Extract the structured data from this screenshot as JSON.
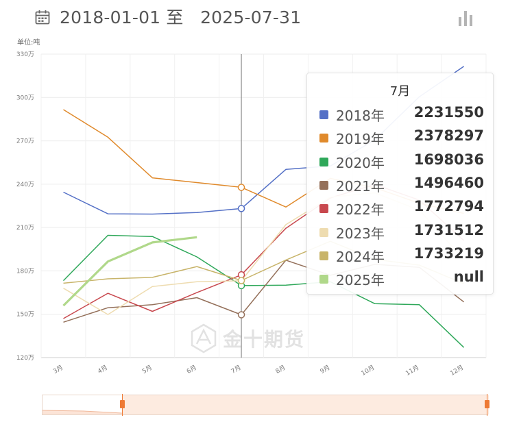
{
  "header": {
    "date_range": "2018-01-01 至   2025-07-31",
    "calendar_icon": "calendar-icon",
    "chart_type_icon": "bar-chart-icon"
  },
  "unit_label": "单位:吨",
  "chart_data": {
    "type": "line",
    "categories": [
      "3月",
      "4月",
      "5月",
      "6月",
      "7月",
      "8月",
      "9月",
      "10月",
      "11月",
      "12月"
    ],
    "y_ticks": [
      "120万",
      "150万",
      "180万",
      "210万",
      "240万",
      "270万",
      "300万",
      "330万"
    ],
    "ylim": [
      1200000,
      3300000
    ],
    "grid": true,
    "highlight_category": "7月",
    "series": [
      {
        "name": "2018年",
        "color": "#5470c6",
        "values": [
          2345000,
          2195000,
          2193000,
          2204000,
          2231550,
          2502000,
          2526000,
          2707000,
          3005000,
          3215000
        ]
      },
      {
        "name": "2019年",
        "color": "#e08a2c",
        "values": [
          2916000,
          2725000,
          2444000,
          2411000,
          2378297,
          2242000,
          2440000,
          2375000,
          2268000,
          2198000
        ]
      },
      {
        "name": "2020年",
        "color": "#2fa85a",
        "values": [
          1733000,
          2046000,
          2038000,
          1897000,
          1698036,
          1701000,
          1725000,
          1573000,
          1566000,
          1270000
        ]
      },
      {
        "name": "2021年",
        "color": "#94705a",
        "values": [
          1445000,
          1545000,
          1566000,
          1615000,
          1496460,
          1874000,
          1770000,
          1845000,
          1825000,
          1585000
        ]
      },
      {
        "name": "2022年",
        "color": "#c8484e",
        "values": [
          1470000,
          1645000,
          1520000,
          1650000,
          1772794,
          2095000,
          2305000,
          2398000,
          2290000,
          2010000
        ]
      },
      {
        "name": "2023年",
        "color": "#eedcb0",
        "values": [
          1680000,
          1498000,
          1692000,
          1725000,
          1731512,
          2120000,
          2310000,
          2340000,
          2220000,
          1880000
        ]
      },
      {
        "name": "2024年",
        "color": "#c8b46a",
        "values": [
          1715000,
          1745000,
          1755000,
          1830000,
          1733219,
          1875000,
          2005000,
          1880000,
          1840000,
          1712000
        ]
      },
      {
        "name": "2025年",
        "color": "#b0d88a",
        "values": [
          1560000,
          1865000,
          1997000,
          2033000,
          null,
          null,
          null,
          null,
          null,
          null
        ]
      }
    ]
  },
  "tooltip": {
    "title": "7月",
    "rows": [
      {
        "name": "2018年",
        "value": "2231550",
        "color": "#5470c6"
      },
      {
        "name": "2019年",
        "value": "2378297",
        "color": "#e08a2c"
      },
      {
        "name": "2020年",
        "value": "1698036",
        "color": "#2fa85a"
      },
      {
        "name": "2021年",
        "value": "1496460",
        "color": "#94705a"
      },
      {
        "name": "2022年",
        "value": "1772794",
        "color": "#c8484e"
      },
      {
        "name": "2023年",
        "value": "1731512",
        "color": "#eedcb0"
      },
      {
        "name": "2024年",
        "value": "1733219",
        "color": "#c8b46a"
      },
      {
        "name": "2025年",
        "value": "null",
        "color": "#b0d88a"
      }
    ]
  },
  "watermark": {
    "text": "金十期货",
    "logo_icon": "jin10-logo-icon"
  },
  "zoom_slider": {
    "start": 0.0,
    "end": 1.0
  }
}
